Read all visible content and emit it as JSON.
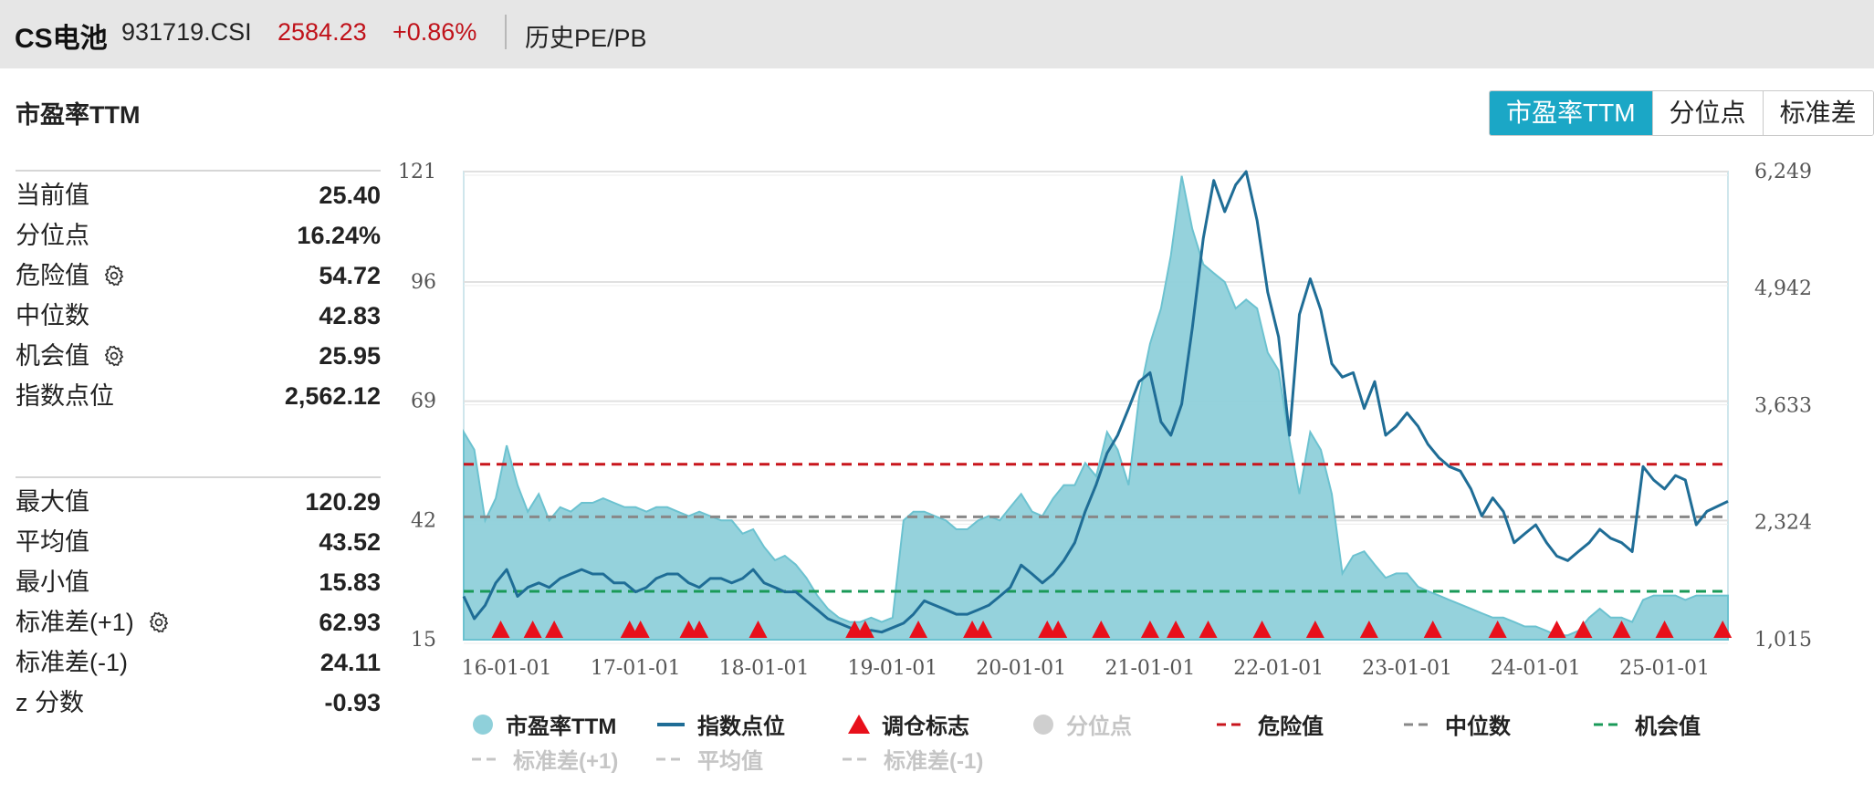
{
  "header": {
    "name": "CS电池",
    "code": "931719.CSI",
    "price": "2584.23",
    "change": "+0.86%",
    "history_label": "历史PE/PB"
  },
  "section_title": "市盈率TTM",
  "tabs": [
    {
      "label": "市盈率TTM",
      "active": true
    },
    {
      "label": "分位点",
      "active": false
    },
    {
      "label": "标准差",
      "active": false
    }
  ],
  "stats_top": [
    {
      "label": "当前值",
      "value": "25.40",
      "gear": false
    },
    {
      "label": "分位点",
      "value": "16.24%",
      "gear": false
    },
    {
      "label": "危险值",
      "value": "54.72",
      "gear": true
    },
    {
      "label": "中位数",
      "value": "42.83",
      "gear": false
    },
    {
      "label": "机会值",
      "value": "25.95",
      "gear": true
    },
    {
      "label": "指数点位",
      "value": "2,562.12",
      "gear": false
    }
  ],
  "stats_bottom": [
    {
      "label": "最大值",
      "value": "120.29",
      "gear": false
    },
    {
      "label": "平均值",
      "value": "43.52",
      "gear": false
    },
    {
      "label": "最小值",
      "value": "15.83",
      "gear": false
    },
    {
      "label": "标准差(+1)",
      "value": "62.93",
      "gear": true
    },
    {
      "label": "标准差(-1)",
      "value": "24.11",
      "gear": false
    },
    {
      "label": "z 分数",
      "value": "-0.93",
      "gear": false
    }
  ],
  "colors": {
    "pe_fill": "#8fd0da",
    "pe_line": "#6cc2d0",
    "index_line": "#1f6d96",
    "marker": "#e8101b",
    "danger": "#c8151c",
    "median": "#888888",
    "opportunity": "#1a9a58",
    "accent": "#1ba7c6",
    "price_red": "#c0121a"
  },
  "chart_data": {
    "type": "area",
    "y_left": {
      "ticks": [
        "121",
        "96",
        "69",
        "42",
        "15"
      ],
      "range": [
        15,
        121
      ]
    },
    "y_right": {
      "ticks": [
        "6,249",
        "4,942",
        "3,633",
        "2,324",
        "1,015"
      ],
      "range": [
        1015,
        6249
      ]
    },
    "x_ticks": [
      "16-01-01",
      "17-01-01",
      "18-01-01",
      "19-01-01",
      "20-01-01",
      "21-01-01",
      "22-01-01",
      "23-01-01",
      "24-01-01",
      "25-01-01"
    ],
    "x_range": [
      "2015-09-01",
      "2025-06-30"
    ],
    "danger_value": 54.72,
    "median_value": 42.83,
    "opportunity_value": 25.95,
    "series": [
      {
        "name": "市盈率TTM",
        "axis": "left",
        "kind": "area",
        "x": [
          "2015-09-01",
          "2015-10-01",
          "2015-11-01",
          "2015-12-01",
          "2016-01-01",
          "2016-02-01",
          "2016-03-01",
          "2016-04-01",
          "2016-05-01",
          "2016-06-01",
          "2016-07-01",
          "2016-08-01",
          "2016-09-01",
          "2016-10-01",
          "2016-11-01",
          "2016-12-01",
          "2017-01-01",
          "2017-02-01",
          "2017-03-01",
          "2017-04-01",
          "2017-05-01",
          "2017-06-01",
          "2017-07-01",
          "2017-08-01",
          "2017-09-01",
          "2017-10-01",
          "2017-11-01",
          "2017-12-01",
          "2018-01-01",
          "2018-02-01",
          "2018-03-01",
          "2018-04-01",
          "2018-05-01",
          "2018-06-01",
          "2018-07-01",
          "2018-08-01",
          "2018-09-01",
          "2018-10-01",
          "2018-11-01",
          "2018-12-01",
          "2019-01-01",
          "2019-02-01",
          "2019-03-01",
          "2019-04-01",
          "2019-05-01",
          "2019-06-01",
          "2019-07-01",
          "2019-08-01",
          "2019-09-01",
          "2019-10-01",
          "2019-11-01",
          "2019-12-01",
          "2020-01-01",
          "2020-02-01",
          "2020-03-01",
          "2020-04-01",
          "2020-05-01",
          "2020-06-01",
          "2020-07-01",
          "2020-08-01",
          "2020-09-01",
          "2020-10-01",
          "2020-11-01",
          "2020-12-01",
          "2021-01-01",
          "2021-02-01",
          "2021-03-01",
          "2021-04-01",
          "2021-05-01",
          "2021-06-01",
          "2021-07-01",
          "2021-08-01",
          "2021-09-01",
          "2021-10-01",
          "2021-11-01",
          "2021-12-01",
          "2022-01-01",
          "2022-02-01",
          "2022-03-01",
          "2022-04-01",
          "2022-05-01",
          "2022-06-01",
          "2022-07-01",
          "2022-08-01",
          "2022-09-01",
          "2022-10-01",
          "2022-11-01",
          "2022-12-01",
          "2023-01-01",
          "2023-02-01",
          "2023-03-01",
          "2023-04-01",
          "2023-05-01",
          "2023-06-01",
          "2023-07-01",
          "2023-08-01",
          "2023-09-01",
          "2023-10-01",
          "2023-11-01",
          "2023-12-01",
          "2024-01-01",
          "2024-02-01",
          "2024-03-01",
          "2024-04-01",
          "2024-05-01",
          "2024-06-01",
          "2024-07-01",
          "2024-08-01",
          "2024-09-01",
          "2024-10-01",
          "2024-11-01",
          "2024-12-01",
          "2025-01-01",
          "2025-02-01",
          "2025-03-01",
          "2025-04-01",
          "2025-05-01",
          "2025-06-30"
        ],
        "values": [
          62,
          58,
          42,
          47,
          59,
          50,
          44,
          48,
          42,
          45,
          44,
          46,
          46,
          47,
          46,
          45,
          45,
          44,
          45,
          45,
          44,
          43,
          44,
          43,
          42,
          42,
          39,
          40,
          36,
          33,
          34,
          32,
          29,
          25,
          22,
          20,
          19,
          19,
          20,
          19,
          20,
          42,
          44,
          44,
          43,
          42,
          40,
          40,
          42,
          43,
          42,
          45,
          48,
          44,
          43,
          47,
          50,
          50,
          55,
          52,
          62,
          58,
          50,
          70,
          82,
          90,
          102,
          120,
          108,
          100,
          98,
          96,
          90,
          92,
          90,
          80,
          76,
          60,
          48,
          62,
          58,
          48,
          30,
          34,
          35,
          32,
          29,
          30,
          30,
          27,
          26,
          25,
          24,
          23,
          22,
          21,
          20,
          20,
          19,
          18,
          18,
          17,
          16,
          16,
          17,
          20,
          22,
          20,
          20,
          19,
          24,
          25,
          25,
          25,
          24,
          25,
          25,
          25
        ]
      },
      {
        "name": "指数点位",
        "axis": "right",
        "kind": "line",
        "x": [
          "2015-09-01",
          "2015-10-01",
          "2015-11-01",
          "2015-12-01",
          "2016-01-01",
          "2016-02-01",
          "2016-03-01",
          "2016-04-01",
          "2016-05-01",
          "2016-06-01",
          "2016-07-01",
          "2016-08-01",
          "2016-09-01",
          "2016-10-01",
          "2016-11-01",
          "2016-12-01",
          "2017-01-01",
          "2017-02-01",
          "2017-03-01",
          "2017-04-01",
          "2017-05-01",
          "2017-06-01",
          "2017-07-01",
          "2017-08-01",
          "2017-09-01",
          "2017-10-01",
          "2017-11-01",
          "2017-12-01",
          "2018-01-01",
          "2018-02-01",
          "2018-03-01",
          "2018-04-01",
          "2018-05-01",
          "2018-06-01",
          "2018-07-01",
          "2018-08-01",
          "2018-09-01",
          "2018-10-01",
          "2018-11-01",
          "2018-12-01",
          "2019-01-01",
          "2019-02-01",
          "2019-03-01",
          "2019-04-01",
          "2019-05-01",
          "2019-06-01",
          "2019-07-01",
          "2019-08-01",
          "2019-09-01",
          "2019-10-01",
          "2019-11-01",
          "2019-12-01",
          "2020-01-01",
          "2020-02-01",
          "2020-03-01",
          "2020-04-01",
          "2020-05-01",
          "2020-06-01",
          "2020-07-01",
          "2020-08-01",
          "2020-09-01",
          "2020-10-01",
          "2020-11-01",
          "2020-12-01",
          "2021-01-01",
          "2021-02-01",
          "2021-03-01",
          "2021-04-01",
          "2021-05-01",
          "2021-06-01",
          "2021-07-01",
          "2021-08-01",
          "2021-09-01",
          "2021-10-01",
          "2021-11-01",
          "2021-12-01",
          "2022-01-01",
          "2022-02-01",
          "2022-03-01",
          "2022-04-01",
          "2022-05-01",
          "2022-06-01",
          "2022-07-01",
          "2022-08-01",
          "2022-09-01",
          "2022-10-01",
          "2022-11-01",
          "2022-12-01",
          "2023-01-01",
          "2023-02-01",
          "2023-03-01",
          "2023-04-01",
          "2023-05-01",
          "2023-06-01",
          "2023-07-01",
          "2023-08-01",
          "2023-09-01",
          "2023-10-01",
          "2023-11-01",
          "2023-12-01",
          "2024-01-01",
          "2024-02-01",
          "2024-03-01",
          "2024-04-01",
          "2024-05-01",
          "2024-06-01",
          "2024-07-01",
          "2024-08-01",
          "2024-09-01",
          "2024-10-01",
          "2024-11-01",
          "2024-12-01",
          "2025-01-01",
          "2025-02-01",
          "2025-03-01",
          "2025-04-01",
          "2025-05-01",
          "2025-06-30"
        ],
        "values": [
          1500,
          1250,
          1400,
          1650,
          1800,
          1500,
          1600,
          1650,
          1600,
          1700,
          1750,
          1800,
          1750,
          1750,
          1650,
          1650,
          1550,
          1600,
          1700,
          1750,
          1750,
          1650,
          1600,
          1700,
          1700,
          1650,
          1700,
          1800,
          1650,
          1600,
          1550,
          1550,
          1450,
          1350,
          1250,
          1200,
          1150,
          1100,
          1120,
          1100,
          1150,
          1200,
          1300,
          1450,
          1400,
          1350,
          1300,
          1300,
          1350,
          1400,
          1500,
          1600,
          1850,
          1750,
          1650,
          1750,
          1900,
          2100,
          2450,
          2750,
          3100,
          3300,
          3600,
          3900,
          4000,
          3450,
          3300,
          3650,
          4500,
          5500,
          6150,
          5800,
          6100,
          6249,
          5700,
          4900,
          4400,
          3300,
          4650,
          5050,
          4700,
          4100,
          3950,
          4000,
          3600,
          3900,
          3300,
          3400,
          3550,
          3400,
          3200,
          3050,
          2950,
          2900,
          2700,
          2400,
          2600,
          2450,
          2100,
          2200,
          2300,
          2100,
          1950,
          1900,
          2000,
          2100,
          2250,
          2150,
          2100,
          2000,
          2950,
          2800,
          2700,
          2850,
          2800,
          2300,
          2450,
          2562
        ]
      },
      {
        "name": "调仓标志",
        "axis": "marker",
        "kind": "markers",
        "x": [
          "2015-12-15",
          "2016-03-15",
          "2016-05-15",
          "2016-12-15",
          "2017-01-15",
          "2017-06-01",
          "2017-07-01",
          "2017-12-15",
          "2018-09-15",
          "2018-10-15",
          "2019-03-15",
          "2019-08-15",
          "2019-09-15",
          "2020-03-15",
          "2020-04-15",
          "2020-08-15",
          "2021-01-01",
          "2021-03-15",
          "2021-06-15",
          "2021-11-15",
          "2022-04-15",
          "2022-09-15",
          "2023-03-15",
          "2023-09-15",
          "2024-03-01",
          "2024-05-15",
          "2024-09-01",
          "2025-01-01",
          "2025-06-15"
        ]
      }
    ],
    "legend": {
      "row1": [
        "市盈率TTM",
        "指数点位",
        "调仓标志",
        "分位点",
        "危险值",
        "中位数",
        "机会值"
      ],
      "row2": [
        "标准差(+1)",
        "平均值",
        "标准差(-1)"
      ],
      "placement": "bottom"
    }
  }
}
